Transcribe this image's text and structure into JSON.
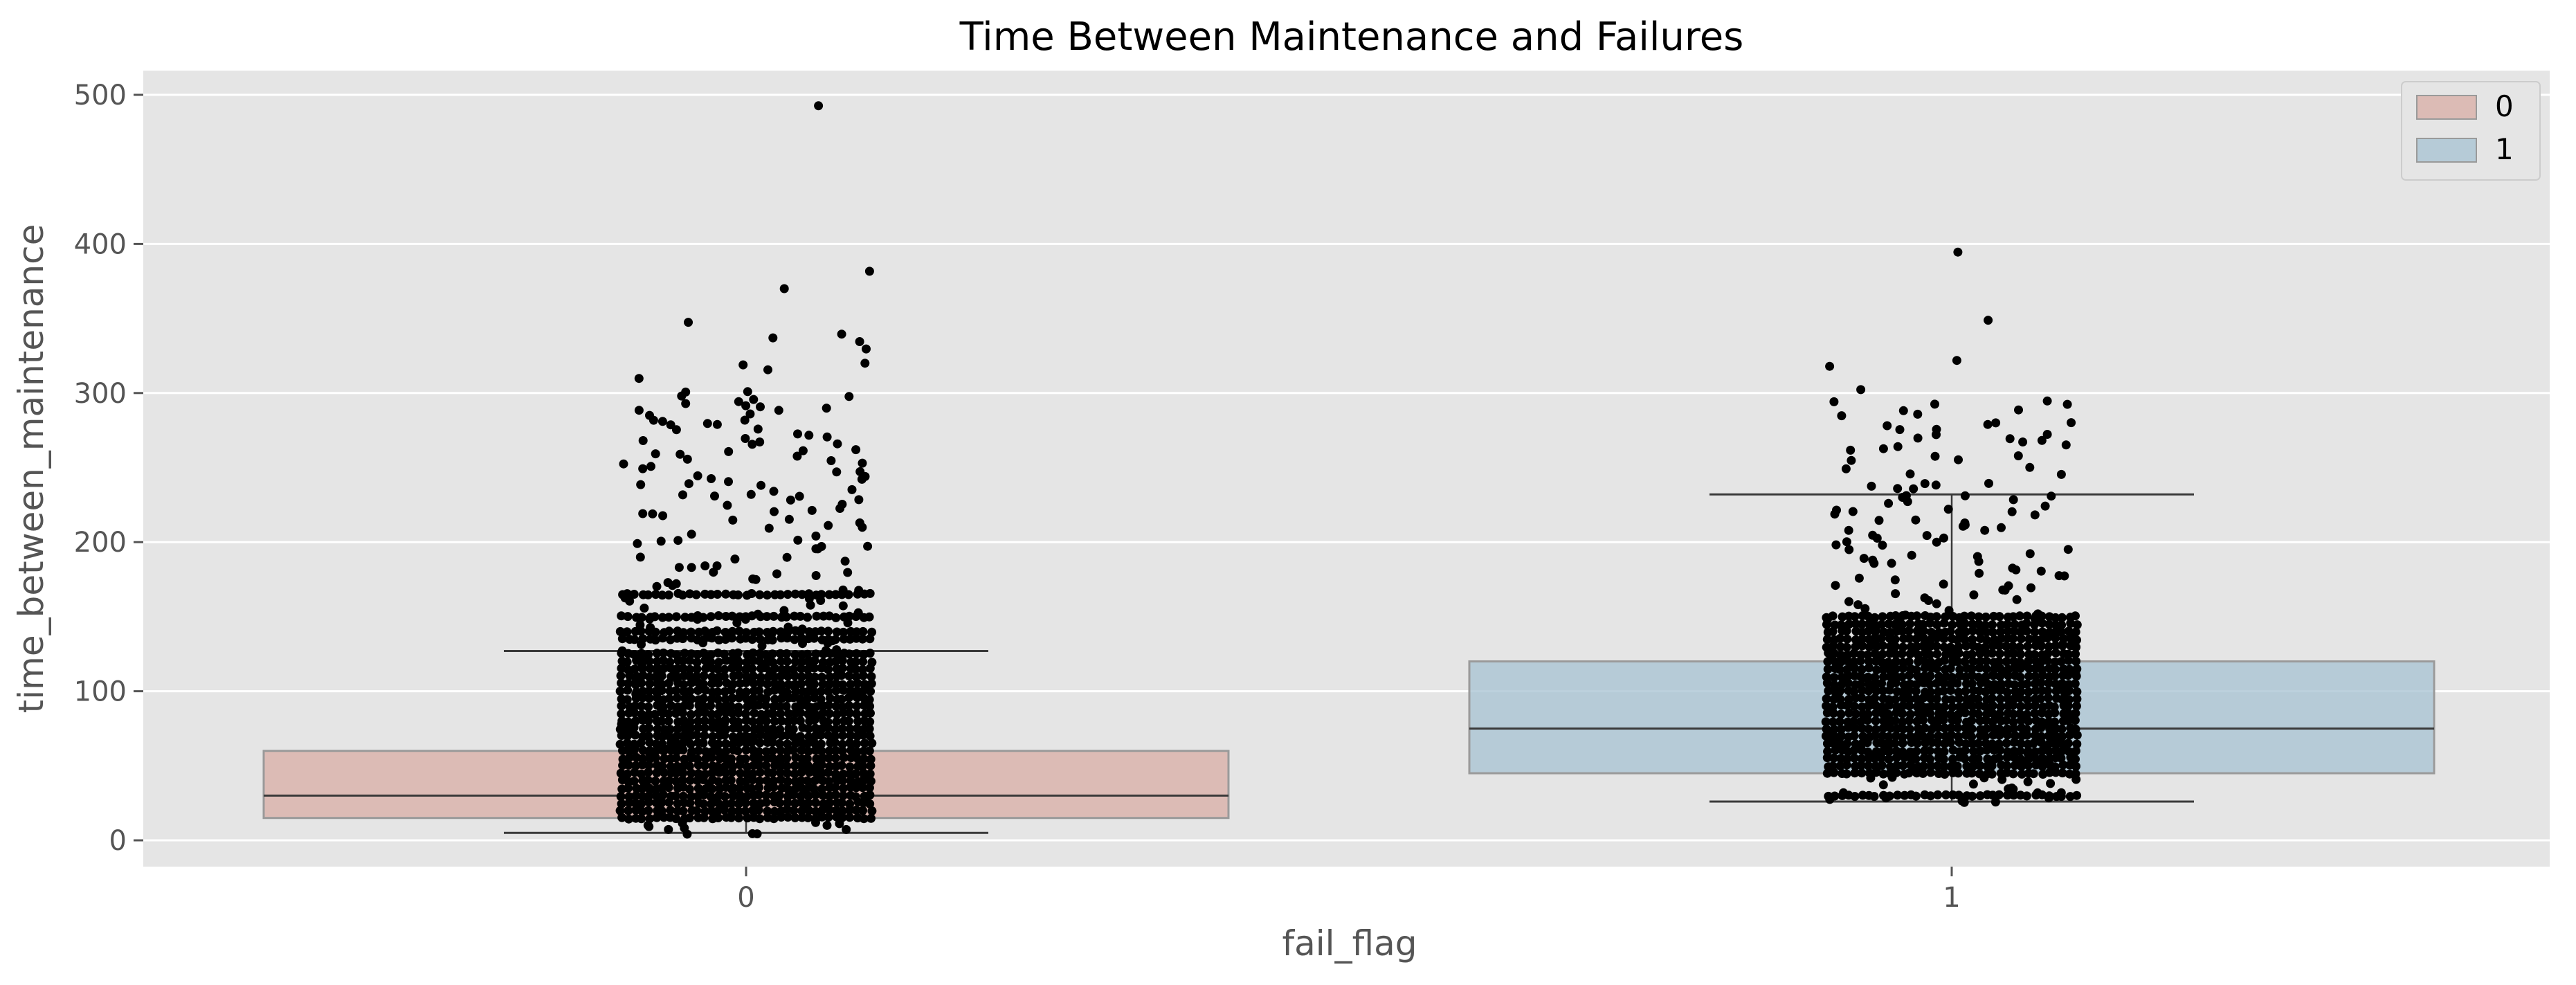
{
  "chart_data": {
    "type": "box",
    "title": "Time Between Maintenance and Failures",
    "xlabel": "fail_flag",
    "ylabel": "time_between_maintenance",
    "categories": [
      "0",
      "1"
    ],
    "ylim": [
      -18,
      518
    ],
    "yticks": [
      0,
      100,
      200,
      300,
      400,
      500
    ],
    "grid": true,
    "legend": {
      "position": "top-right",
      "entries": [
        "0",
        "1"
      ]
    },
    "colors": {
      "0": "#d8aca4",
      "1": "#a6c2d1",
      "points": "#000000",
      "background": "#e5e5e5"
    },
    "series": [
      {
        "name": "0",
        "whisker_low": 5,
        "q1": 15,
        "median": 30,
        "q3": 60,
        "whisker_high": 127,
        "strips": [
          15,
          20,
          25,
          30,
          35,
          40,
          45,
          50,
          55,
          60,
          65,
          70,
          75,
          80,
          85,
          90,
          95,
          100,
          105,
          110,
          115,
          120,
          125,
          135,
          140,
          150,
          165
        ],
        "scatter": [
          5,
          8,
          10,
          12,
          22,
          28,
          33,
          38,
          42,
          47,
          52,
          58,
          62,
          68,
          72,
          78,
          83,
          88,
          92,
          98,
          102,
          108,
          113,
          118,
          122,
          128,
          131,
          133,
          137,
          142,
          145,
          148,
          152,
          155,
          158,
          160,
          162,
          168,
          170,
          172,
          175,
          178,
          180,
          183,
          185,
          188,
          190,
          195,
          198,
          200,
          202,
          205,
          210,
          212,
          215,
          218,
          220,
          222,
          225,
          228,
          230,
          232,
          235,
          238,
          240,
          242,
          245,
          248,
          250,
          252,
          255,
          258,
          260,
          262,
          265,
          268,
          270,
          272,
          275,
          278,
          280,
          282,
          285,
          288,
          290,
          292,
          295,
          298,
          300,
          310,
          315,
          318,
          320,
          330,
          335,
          338,
          340,
          348,
          370,
          382,
          492
        ]
      },
      {
        "name": "1",
        "whisker_low": 26,
        "q1": 45,
        "median": 75,
        "q3": 120,
        "whisker_high": 232,
        "strips": [
          30,
          45,
          50,
          55,
          60,
          65,
          70,
          75,
          80,
          85,
          90,
          95,
          100,
          105,
          110,
          115,
          120,
          125,
          130,
          135,
          140,
          145,
          150
        ],
        "scatter": [
          26,
          28,
          32,
          35,
          38,
          40,
          42,
          48,
          52,
          58,
          62,
          68,
          72,
          78,
          82,
          88,
          92,
          98,
          102,
          108,
          112,
          118,
          122,
          128,
          132,
          138,
          142,
          148,
          152,
          155,
          158,
          160,
          162,
          165,
          168,
          170,
          172,
          175,
          178,
          180,
          182,
          185,
          188,
          190,
          192,
          195,
          198,
          200,
          202,
          205,
          208,
          210,
          212,
          215,
          218,
          220,
          222,
          225,
          228,
          230,
          232,
          235,
          238,
          240,
          245,
          250,
          255,
          258,
          262,
          265,
          268,
          270,
          272,
          275,
          278,
          280,
          285,
          288,
          292,
          295,
          302,
          318,
          322,
          348,
          395
        ]
      }
    ]
  }
}
